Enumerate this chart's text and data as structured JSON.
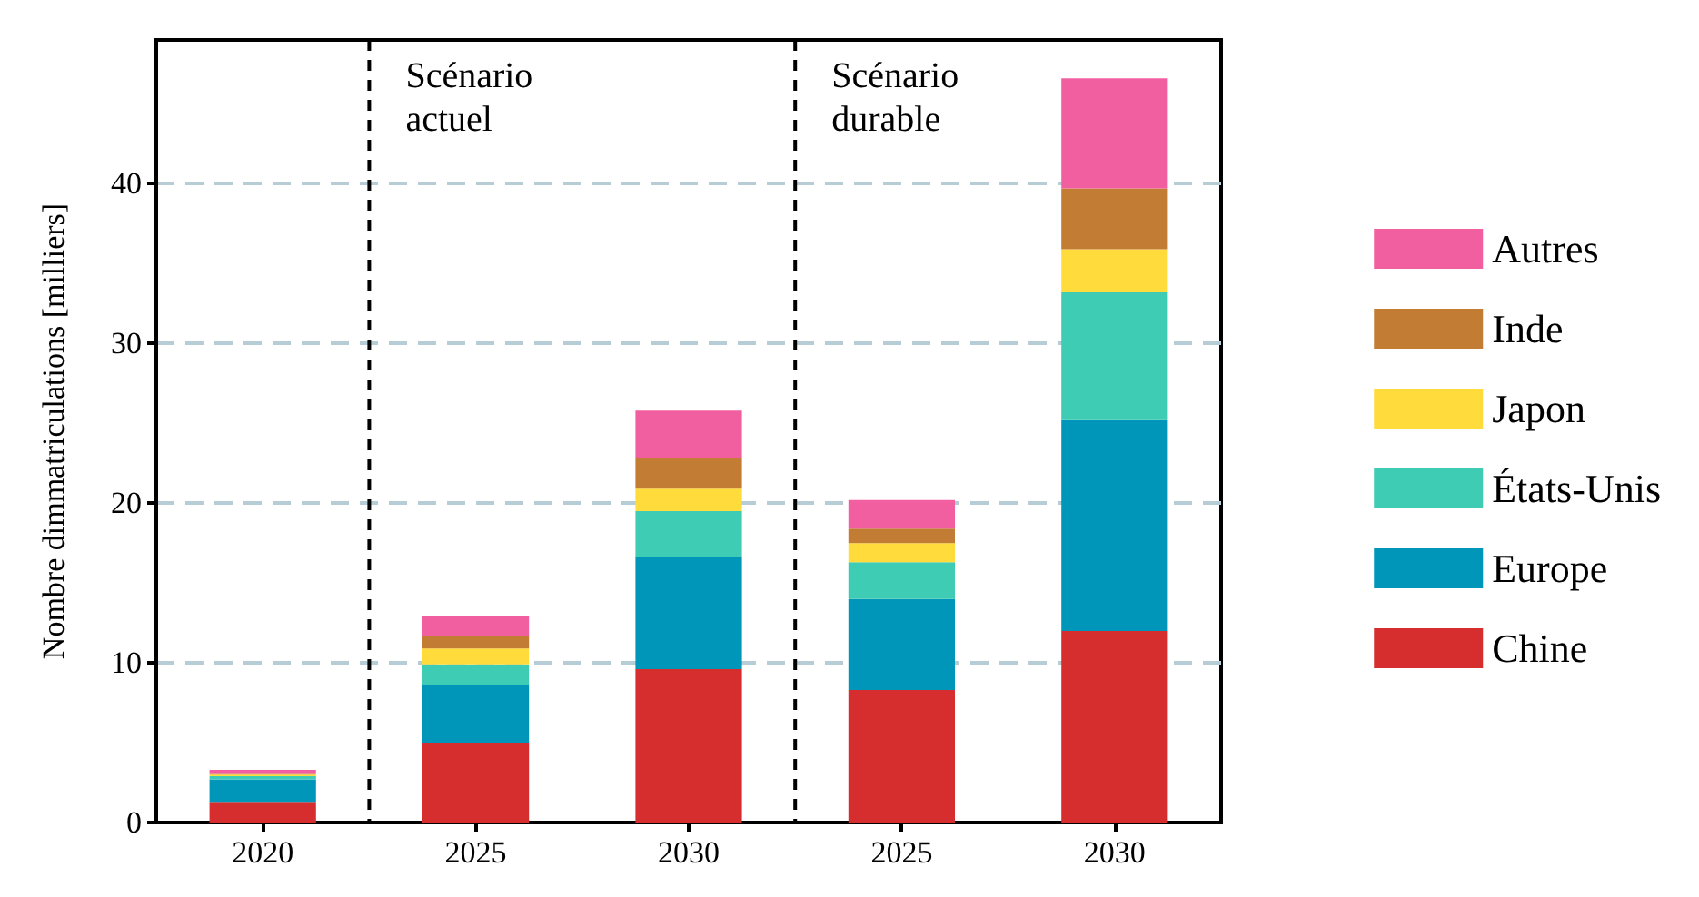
{
  "chart_data": {
    "type": "bar",
    "stacked": true,
    "ylabel": "Nombre dimmatriculations [milliers]",
    "categories": [
      "2020",
      "2025",
      "2030",
      "2025",
      "2030"
    ],
    "series": [
      {
        "name": "Chine",
        "color": "#d62d2f",
        "values": [
          1.3,
          5.0,
          9.6,
          8.3,
          12.0
        ]
      },
      {
        "name": "Europe",
        "color": "#0096b9",
        "values": [
          1.4,
          3.6,
          7.0,
          5.7,
          13.2
        ]
      },
      {
        "name": "États-Unis",
        "color": "#3ecdb4",
        "values": [
          0.2,
          1.3,
          2.9,
          2.3,
          8.0
        ]
      },
      {
        "name": "Japon",
        "color": "#ffdc3c",
        "values": [
          0.1,
          1.0,
          1.4,
          1.2,
          2.7
        ]
      },
      {
        "name": "Inde",
        "color": "#c27c33",
        "values": [
          0.1,
          0.8,
          1.9,
          0.9,
          3.8
        ]
      },
      {
        "name": "Autres",
        "color": "#f25fa0",
        "values": [
          0.2,
          1.2,
          3.0,
          1.8,
          6.9
        ]
      }
    ],
    "ylim": [
      0,
      49
    ],
    "yticks": [
      0,
      10,
      20,
      30,
      40
    ],
    "grid": "y",
    "legend": "right",
    "annotations": [
      "Scénario\nactuel",
      "Scénario\ndurable"
    ]
  }
}
